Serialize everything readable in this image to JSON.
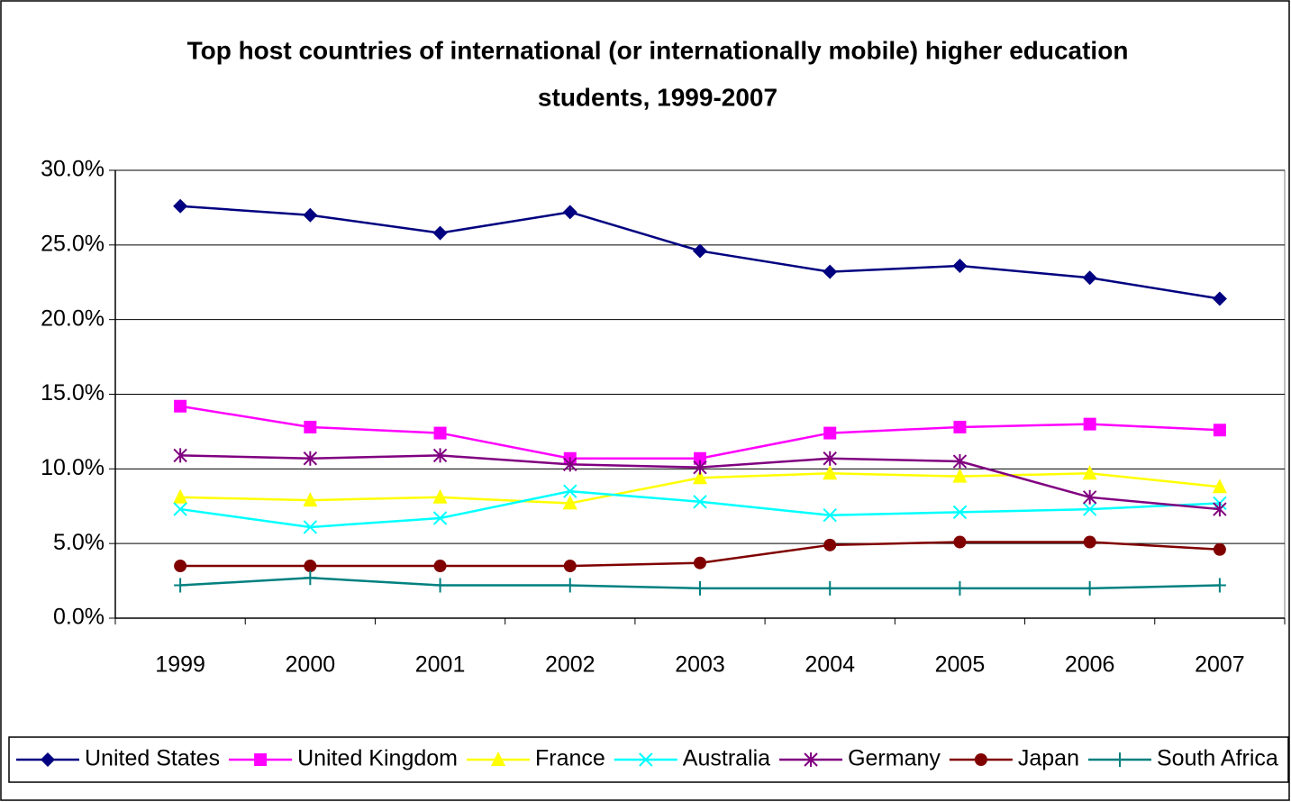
{
  "chart_data": {
    "type": "line",
    "title": [
      "Top host countries of international (or internationally mobile) higher education",
      "students, 1999-2007"
    ],
    "categories": [
      "1999",
      "2000",
      "2001",
      "2002",
      "2003",
      "2004",
      "2005",
      "2006",
      "2007"
    ],
    "series": [
      {
        "name": "United States",
        "color": "#000080",
        "marker": "diamond",
        "values": [
          27.6,
          27.0,
          25.8,
          27.2,
          24.6,
          23.2,
          23.6,
          22.8,
          21.4
        ]
      },
      {
        "name": "United Kingdom",
        "color": "#ff00ff",
        "marker": "square",
        "values": [
          14.2,
          12.8,
          12.4,
          10.7,
          10.7,
          12.4,
          12.8,
          13.0,
          12.6
        ]
      },
      {
        "name": "France",
        "color": "#ffff00",
        "marker": "triangle",
        "values": [
          8.1,
          7.9,
          8.1,
          7.7,
          9.4,
          9.7,
          9.5,
          9.7,
          8.8
        ]
      },
      {
        "name": "Australia",
        "color": "#00ffff",
        "marker": "x",
        "values": [
          7.3,
          6.1,
          6.7,
          8.5,
          7.8,
          6.9,
          7.1,
          7.3,
          7.7
        ]
      },
      {
        "name": "Germany",
        "color": "#800080",
        "marker": "asterisk",
        "values": [
          10.9,
          10.7,
          10.9,
          10.3,
          10.1,
          10.7,
          10.5,
          8.1,
          7.3
        ]
      },
      {
        "name": "Japan",
        "color": "#800000",
        "marker": "circle",
        "values": [
          3.5,
          3.5,
          3.5,
          3.5,
          3.7,
          4.9,
          5.1,
          5.1,
          4.6
        ]
      },
      {
        "name": "South Africa",
        "color": "#008080",
        "marker": "plus",
        "values": [
          2.2,
          2.7,
          2.2,
          2.2,
          2.0,
          2.0,
          2.0,
          2.0,
          2.2
        ]
      }
    ],
    "ylim": [
      0,
      30
    ],
    "yticks": [
      {
        "value": 0,
        "label": "0.0%"
      },
      {
        "value": 5,
        "label": "5.0%"
      },
      {
        "value": 10,
        "label": "10.0%"
      },
      {
        "value": 15,
        "label": "15.0%"
      },
      {
        "value": 20,
        "label": "20.0%"
      },
      {
        "value": 25,
        "label": "25.0%"
      },
      {
        "value": 30,
        "label": "30.0%"
      }
    ],
    "grid": true,
    "legend": "bottom"
  }
}
